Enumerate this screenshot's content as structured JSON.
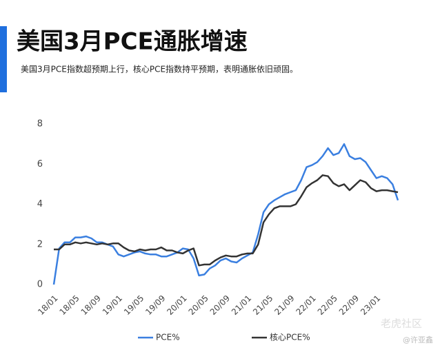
{
  "header": {
    "title": "美国3月PCE通胀增速",
    "subtitle": "美国3月PCE指数超预期上行，核心PCE指数持平预期，表明通胀依旧顽固。"
  },
  "watermark": {
    "brand": "老虎社区",
    "author": "@许亚鑫"
  },
  "chart_data": {
    "type": "line",
    "categories": [
      "18/01",
      null,
      null,
      null,
      "18/05",
      null,
      null,
      null,
      "18/09",
      null,
      null,
      null,
      "19/01",
      null,
      null,
      null,
      "19/05",
      null,
      null,
      null,
      "19/09",
      null,
      null,
      null,
      "20/01",
      null,
      null,
      null,
      "20/05",
      null,
      null,
      null,
      "20/09",
      null,
      null,
      null,
      "21/01",
      null,
      null,
      null,
      "21/05",
      null,
      null,
      null,
      "21/09",
      null,
      null,
      null,
      "22/01",
      null,
      null,
      null,
      "22/05",
      null,
      null,
      null,
      "22/09",
      null,
      null,
      null,
      "23/01",
      null,
      null,
      null,
      null
    ],
    "series": [
      {
        "name": "PCE%",
        "color": "#3a7fe0",
        "values": [
          0,
          1.8,
          2.1,
          2.1,
          2.35,
          2.35,
          2.4,
          2.3,
          2.1,
          2.1,
          2.0,
          1.9,
          1.5,
          1.4,
          1.5,
          1.6,
          1.65,
          1.55,
          1.5,
          1.5,
          1.4,
          1.4,
          1.5,
          1.6,
          1.8,
          1.75,
          1.3,
          0.45,
          0.5,
          0.8,
          0.95,
          1.2,
          1.3,
          1.15,
          1.1,
          1.3,
          1.45,
          1.6,
          2.5,
          3.6,
          4.0,
          4.2,
          4.35,
          4.5,
          4.6,
          4.7,
          5.2,
          5.85,
          5.95,
          6.1,
          6.4,
          6.8,
          6.45,
          6.55,
          7.0,
          6.4,
          6.25,
          6.3,
          6.1,
          5.7,
          5.3,
          5.4,
          5.3,
          5.0,
          4.2
        ]
      },
      {
        "name": "核心PCE%",
        "color": "#333333",
        "values": [
          1.75,
          1.75,
          2.0,
          2.0,
          2.1,
          2.05,
          2.1,
          2.05,
          2.0,
          2.05,
          2.0,
          2.05,
          2.05,
          1.85,
          1.7,
          1.65,
          1.75,
          1.7,
          1.75,
          1.75,
          1.85,
          1.7,
          1.7,
          1.6,
          1.55,
          1.7,
          1.8,
          0.95,
          1.0,
          1.0,
          1.2,
          1.35,
          1.45,
          1.4,
          1.4,
          1.5,
          1.55,
          1.55,
          2.0,
          3.1,
          3.5,
          3.8,
          3.9,
          3.9,
          3.9,
          4.0,
          4.4,
          4.85,
          5.05,
          5.2,
          5.45,
          5.4,
          5.05,
          4.9,
          5.0,
          4.7,
          4.95,
          5.2,
          5.1,
          4.8,
          4.65,
          4.7,
          4.7,
          4.65,
          4.6
        ]
      }
    ],
    "ylim": [
      0,
      8
    ],
    "yticks": [
      0,
      2,
      4,
      6,
      8
    ],
    "grid": false
  }
}
